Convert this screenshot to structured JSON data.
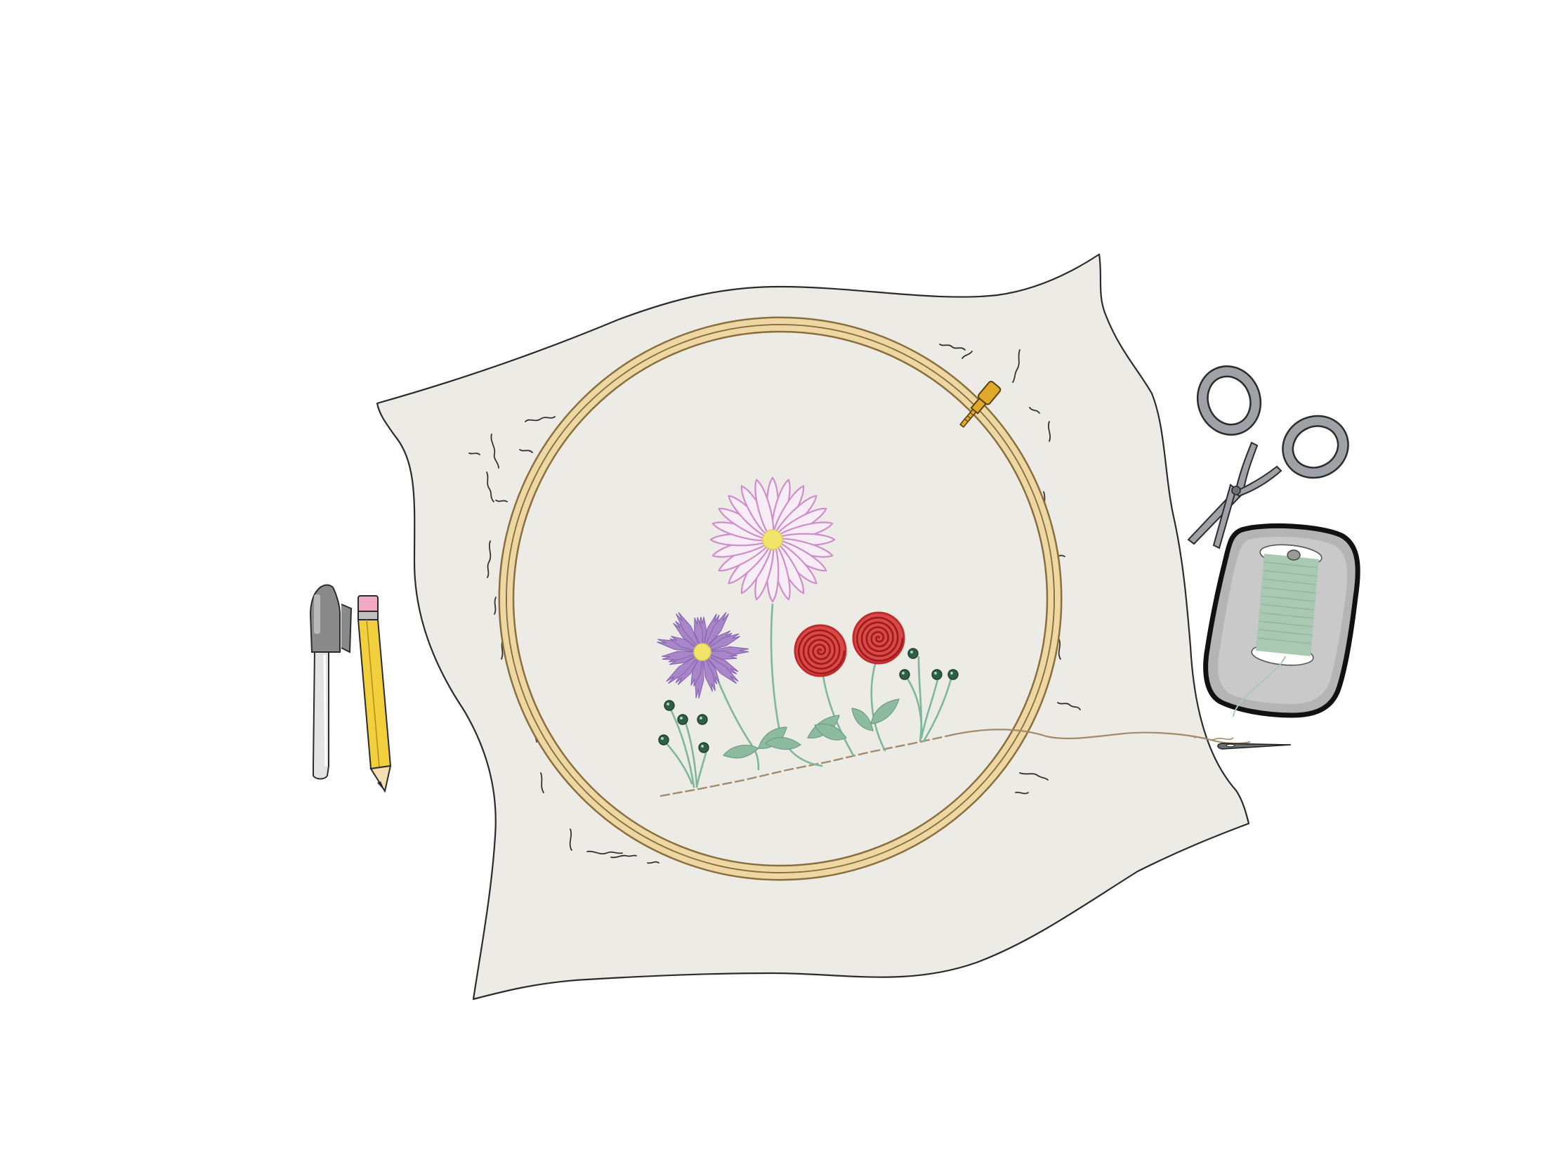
{
  "scene": {
    "description_label": "embroidery-hoop-illustration"
  },
  "colors": {
    "background": "#ffffff",
    "fabric": "#ecebe6",
    "outline": "#2b2b2b",
    "hoop_wood": "#edd7a3",
    "hoop_wood_dark": "#c9ab6b",
    "hoop_screw": "#e0a92a",
    "pink_petal": "#d08ccc",
    "purple_petal": "#a886c9",
    "flower_center": "#f1e46a",
    "rose_red": "#c32a2a",
    "stem_green": "#7fb79a",
    "leaf_green": "#8dbb9f",
    "bud_green": "#2f5e46",
    "thread_brown": "#a38a6a",
    "scissors_gray": "#9ea1a6",
    "spool_tray": "#b4b4b4",
    "spool_thread": "#a9c9b2",
    "pencil_yellow": "#f2cf3c",
    "pencil_eraser": "#f0a9c4",
    "pen_body": "#d9d9d9",
    "pen_cap": "#8a8a8a"
  },
  "icons": {
    "pen": "pen-icon",
    "pencil": "pencil-icon",
    "scissors": "scissors-icon",
    "spool": "thread-spool-icon",
    "needle": "needle-icon",
    "hoop": "embroidery-hoop-icon"
  }
}
